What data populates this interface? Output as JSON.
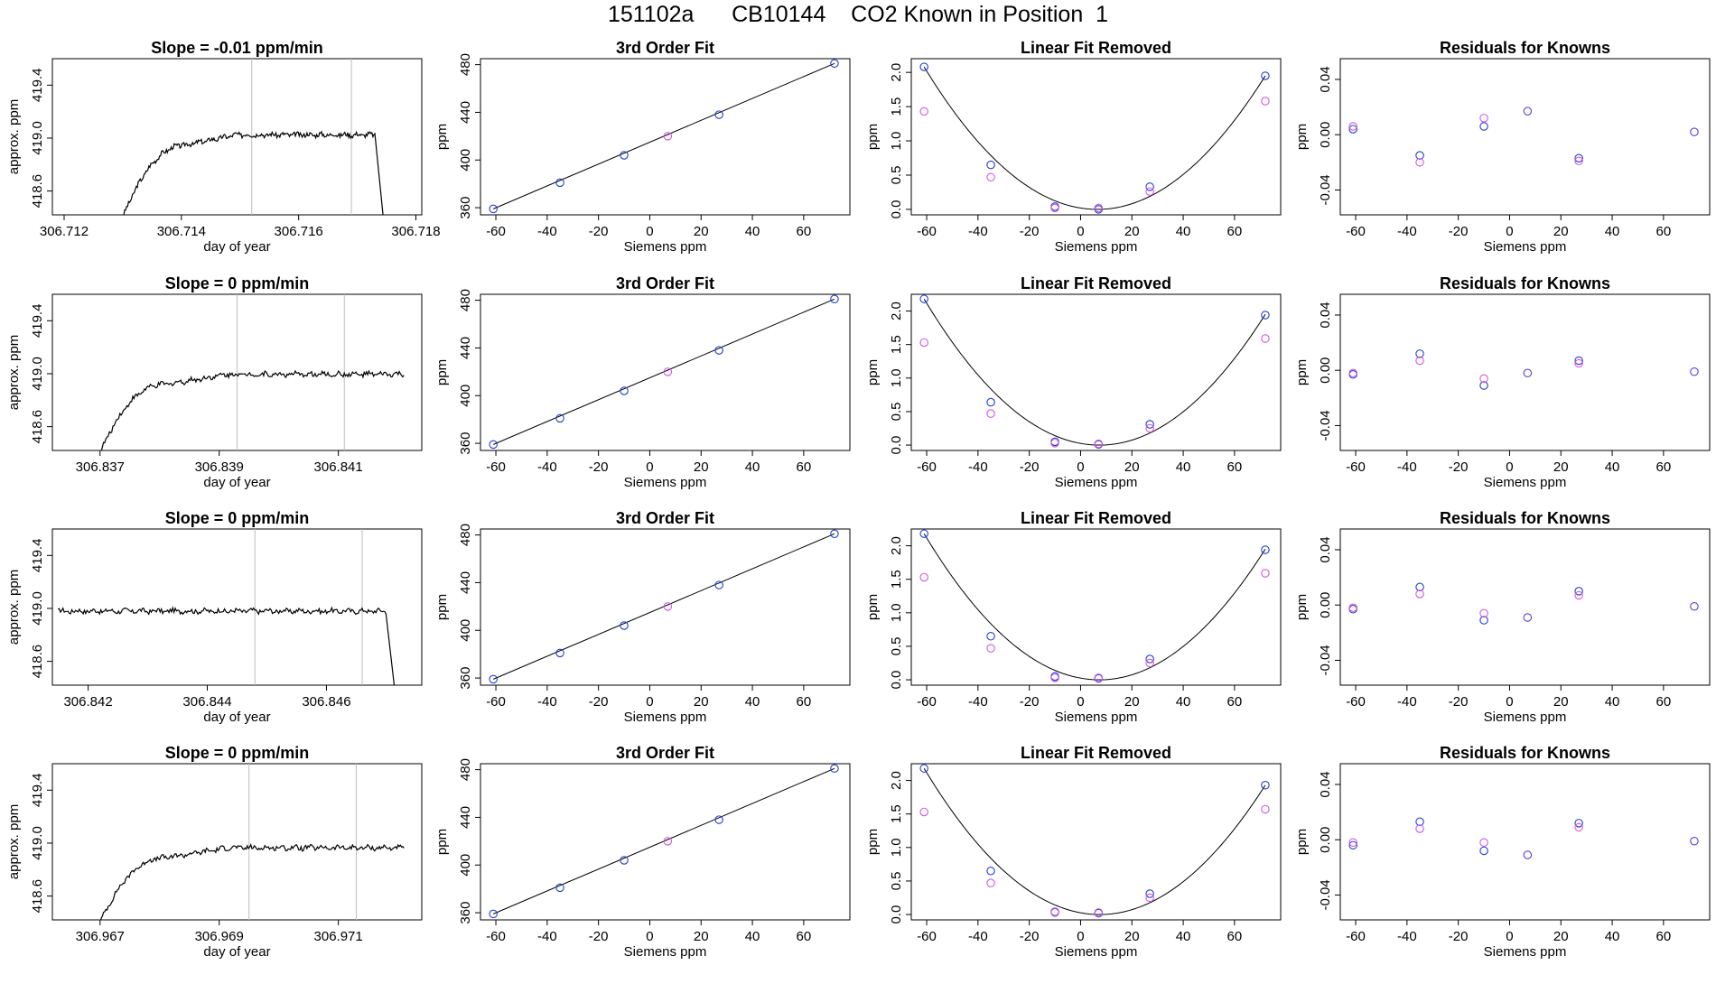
{
  "figure": {
    "title": "151102a      CB10144    CO2 Known in Position  1"
  },
  "colors": {
    "trace": "#000000",
    "vline": "#bdbdbd",
    "blue": "#1f3fd8",
    "purple": "#5b3fd8",
    "magenta": "#d455e6",
    "frame": "#000000"
  },
  "chart_data": [
    {
      "type": "line",
      "panel": "drift",
      "row": 0,
      "title": "Slope =  -0.01  ppm/min",
      "xlabel": "day of year",
      "ylabel": "approx. ppm",
      "xlim": [
        306.7118,
        306.7181
      ],
      "ylim": [
        418.42,
        419.6
      ],
      "xticks": [
        "306.712",
        "306.714",
        "306.716",
        "306.718"
      ],
      "yticks": [
        "418.6",
        "419.0",
        "419.4"
      ],
      "vlines": [
        306.7152,
        306.7169
      ],
      "trace": {
        "x_start": 306.713,
        "rise_end": 306.7141,
        "end": 306.7173,
        "level": 419.03,
        "base": 419.02,
        "lead": 0,
        "drop_end": 306.71745
      }
    },
    {
      "type": "line",
      "panel": "drift",
      "row": 1,
      "title": "Slope =  0  ppm/min",
      "xlabel": "day of year",
      "ylabel": "approx. ppm",
      "xlim": [
        306.8362,
        306.8424
      ],
      "ylim": [
        418.42,
        419.6
      ],
      "xticks": [
        "306.837",
        "306.839",
        "306.841"
      ],
      "yticks": [
        "418.6",
        "419.0",
        "419.4"
      ],
      "vlines": [
        306.8393,
        306.8411
      ],
      "trace": {
        "x_start": 306.837,
        "rise_end": 306.8381,
        "end": 306.8421,
        "level": 419.0,
        "base": 418.99,
        "lead": 0,
        "drop_end": null
      }
    },
    {
      "type": "line",
      "panel": "drift",
      "row": 2,
      "title": "Slope =  0  ppm/min",
      "xlabel": "day of year",
      "ylabel": "approx. ppm",
      "xlim": [
        306.8414,
        306.8476
      ],
      "ylim": [
        418.42,
        419.6
      ],
      "xticks": [
        "306.842",
        "306.844",
        "306.846"
      ],
      "yticks": [
        "418.6",
        "419.0",
        "419.4"
      ],
      "vlines": [
        306.8448,
        306.8466
      ],
      "trace": {
        "x_start": 306.8418,
        "rise_end": 306.8418,
        "end": 306.847,
        "level": 418.98,
        "base": 418.98,
        "lead": 1,
        "drop_end": 306.84715
      }
    },
    {
      "type": "line",
      "panel": "drift",
      "row": 3,
      "title": "Slope =  0  ppm/min",
      "xlabel": "day of year",
      "ylabel": "approx. ppm",
      "xlim": [
        306.9662,
        306.9724
      ],
      "ylim": [
        418.42,
        419.6
      ],
      "xticks": [
        "306.967",
        "306.969",
        "306.971"
      ],
      "yticks": [
        "418.6",
        "419.0",
        "419.4"
      ],
      "vlines": [
        306.9695,
        306.9713
      ],
      "trace": {
        "x_start": 306.967,
        "rise_end": 306.9681,
        "end": 306.9721,
        "level": 418.97,
        "base": 418.96,
        "lead": 0,
        "drop_end": null
      }
    },
    {
      "type": "scatter",
      "panel": "fit",
      "row": 0,
      "title": "3rd Order Fit",
      "xlabel": "Siemens ppm",
      "ylabel": "ppm",
      "xlim": [
        -66,
        78
      ],
      "ylim": [
        354,
        485
      ],
      "xticks": [
        -60,
        -40,
        -20,
        0,
        20,
        40,
        60
      ],
      "yticks": [
        360,
        400,
        440,
        480
      ],
      "line": [
        [
          -61,
          359
        ],
        [
          72,
          481
        ]
      ],
      "points": [
        {
          "x": -61,
          "y": 359,
          "c": "blue"
        },
        {
          "x": -35,
          "y": 381,
          "c": "blue"
        },
        {
          "x": -10,
          "y": 404,
          "c": "blue"
        },
        {
          "x": 7,
          "y": 420,
          "c": "magenta"
        },
        {
          "x": 27,
          "y": 438,
          "c": "blue"
        },
        {
          "x": 72,
          "y": 481,
          "c": "blue"
        }
      ]
    },
    {
      "type": "scatter",
      "panel": "fit",
      "row": 1,
      "title": "3rd Order Fit",
      "xlabel": "Siemens ppm",
      "ylabel": "ppm",
      "xlim": [
        -66,
        78
      ],
      "ylim": [
        354,
        485
      ],
      "xticks": [
        -60,
        -40,
        -20,
        0,
        20,
        40,
        60
      ],
      "yticks": [
        360,
        400,
        440,
        480
      ],
      "line": [
        [
          -61,
          359
        ],
        [
          72,
          481
        ]
      ],
      "points": [
        {
          "x": -61,
          "y": 359,
          "c": "blue"
        },
        {
          "x": -35,
          "y": 381,
          "c": "blue"
        },
        {
          "x": -10,
          "y": 404,
          "c": "blue"
        },
        {
          "x": 7,
          "y": 420,
          "c": "magenta"
        },
        {
          "x": 27,
          "y": 438,
          "c": "blue"
        },
        {
          "x": 72,
          "y": 481,
          "c": "blue"
        }
      ]
    },
    {
      "type": "scatter",
      "panel": "fit",
      "row": 2,
      "title": "3rd Order Fit",
      "xlabel": "Siemens ppm",
      "ylabel": "ppm",
      "xlim": [
        -66,
        78
      ],
      "ylim": [
        354,
        485
      ],
      "xticks": [
        -60,
        -40,
        -20,
        0,
        20,
        40,
        60
      ],
      "yticks": [
        360,
        400,
        440,
        480
      ],
      "line": [
        [
          -61,
          359
        ],
        [
          72,
          481
        ]
      ],
      "points": [
        {
          "x": -61,
          "y": 359,
          "c": "blue"
        },
        {
          "x": -35,
          "y": 381,
          "c": "blue"
        },
        {
          "x": -10,
          "y": 404,
          "c": "blue"
        },
        {
          "x": 7,
          "y": 420,
          "c": "magenta"
        },
        {
          "x": 27,
          "y": 438,
          "c": "blue"
        },
        {
          "x": 72,
          "y": 481,
          "c": "blue"
        }
      ]
    },
    {
      "type": "scatter",
      "panel": "fit",
      "row": 3,
      "title": "3rd Order Fit",
      "xlabel": "Siemens ppm",
      "ylabel": "ppm",
      "xlim": [
        -66,
        78
      ],
      "ylim": [
        354,
        485
      ],
      "xticks": [
        -60,
        -40,
        -20,
        0,
        20,
        40,
        60
      ],
      "yticks": [
        360,
        400,
        440,
        480
      ],
      "line": [
        [
          -61,
          359
        ],
        [
          72,
          481
        ]
      ],
      "points": [
        {
          "x": -61,
          "y": 359,
          "c": "blue"
        },
        {
          "x": -35,
          "y": 381,
          "c": "blue"
        },
        {
          "x": -10,
          "y": 404,
          "c": "blue"
        },
        {
          "x": 7,
          "y": 420,
          "c": "magenta"
        },
        {
          "x": 27,
          "y": 438,
          "c": "blue"
        },
        {
          "x": 72,
          "y": 481,
          "c": "blue"
        }
      ]
    },
    {
      "type": "scatter",
      "panel": "linear",
      "row": 0,
      "title": "Linear Fit Removed",
      "xlabel": "Siemens ppm",
      "ylabel": "ppm",
      "xlim": [
        -66,
        78
      ],
      "ylim": [
        -0.08,
        2.2
      ],
      "xticks": [
        -60,
        -40,
        -20,
        0,
        20,
        40,
        60
      ],
      "yticks": [
        "0.0",
        "0.5",
        "1.0",
        "1.5",
        "2.0"
      ],
      "curve": [
        -61,
        2.08,
        72,
        1.95
      ],
      "points": [
        {
          "x": -61,
          "y": 2.08,
          "c": "blue"
        },
        {
          "x": -61,
          "y": 1.43,
          "c": "magenta"
        },
        {
          "x": -35,
          "y": 0.65,
          "c": "blue"
        },
        {
          "x": -35,
          "y": 0.47,
          "c": "magenta"
        },
        {
          "x": -10,
          "y": 0.04,
          "c": "blue"
        },
        {
          "x": -10,
          "y": 0.02,
          "c": "magenta"
        },
        {
          "x": 7,
          "y": 0.0,
          "c": "blue"
        },
        {
          "x": 7,
          "y": 0.02,
          "c": "magenta"
        },
        {
          "x": 27,
          "y": 0.33,
          "c": "blue"
        },
        {
          "x": 27,
          "y": 0.26,
          "c": "magenta"
        },
        {
          "x": 72,
          "y": 1.95,
          "c": "blue"
        },
        {
          "x": 72,
          "y": 1.58,
          "c": "magenta"
        }
      ]
    },
    {
      "type": "scatter",
      "panel": "linear",
      "row": 1,
      "title": "Linear Fit Removed",
      "xlabel": "Siemens ppm",
      "ylabel": "ppm",
      "xlim": [
        -66,
        78
      ],
      "ylim": [
        -0.08,
        2.25
      ],
      "xticks": [
        -60,
        -40,
        -20,
        0,
        20,
        40,
        60
      ],
      "yticks": [
        "0.0",
        "0.5",
        "1.0",
        "1.5",
        "2.0"
      ],
      "curve": [
        -61,
        2.18,
        72,
        1.95
      ],
      "points": [
        {
          "x": -61,
          "y": 2.18,
          "c": "blue"
        },
        {
          "x": -61,
          "y": 1.53,
          "c": "magenta"
        },
        {
          "x": -35,
          "y": 0.64,
          "c": "blue"
        },
        {
          "x": -35,
          "y": 0.47,
          "c": "magenta"
        },
        {
          "x": -10,
          "y": 0.05,
          "c": "blue"
        },
        {
          "x": -10,
          "y": 0.03,
          "c": "magenta"
        },
        {
          "x": 7,
          "y": 0.01,
          "c": "blue"
        },
        {
          "x": 7,
          "y": 0.02,
          "c": "magenta"
        },
        {
          "x": 27,
          "y": 0.31,
          "c": "blue"
        },
        {
          "x": 27,
          "y": 0.25,
          "c": "magenta"
        },
        {
          "x": 72,
          "y": 1.94,
          "c": "blue"
        },
        {
          "x": 72,
          "y": 1.59,
          "c": "magenta"
        }
      ]
    },
    {
      "type": "scatter",
      "panel": "linear",
      "row": 2,
      "title": "Linear Fit Removed",
      "xlabel": "Siemens ppm",
      "ylabel": "ppm",
      "xlim": [
        -66,
        78
      ],
      "ylim": [
        -0.08,
        2.25
      ],
      "xticks": [
        -60,
        -40,
        -20,
        0,
        20,
        40,
        60
      ],
      "yticks": [
        "0.0",
        "0.5",
        "1.0",
        "1.5",
        "2.0"
      ],
      "curve": [
        -61,
        2.18,
        72,
        1.95
      ],
      "points": [
        {
          "x": -61,
          "y": 2.18,
          "c": "blue"
        },
        {
          "x": -61,
          "y": 1.53,
          "c": "magenta"
        },
        {
          "x": -35,
          "y": 0.65,
          "c": "blue"
        },
        {
          "x": -35,
          "y": 0.47,
          "c": "magenta"
        },
        {
          "x": -10,
          "y": 0.05,
          "c": "blue"
        },
        {
          "x": -10,
          "y": 0.03,
          "c": "magenta"
        },
        {
          "x": 7,
          "y": 0.02,
          "c": "blue"
        },
        {
          "x": 7,
          "y": 0.03,
          "c": "magenta"
        },
        {
          "x": 27,
          "y": 0.31,
          "c": "blue"
        },
        {
          "x": 27,
          "y": 0.25,
          "c": "magenta"
        },
        {
          "x": 72,
          "y": 1.94,
          "c": "blue"
        },
        {
          "x": 72,
          "y": 1.59,
          "c": "magenta"
        }
      ]
    },
    {
      "type": "scatter",
      "panel": "linear",
      "row": 3,
      "title": "Linear Fit Removed",
      "xlabel": "Siemens ppm",
      "ylabel": "ppm",
      "xlim": [
        -66,
        78
      ],
      "ylim": [
        -0.08,
        2.25
      ],
      "xticks": [
        -60,
        -40,
        -20,
        0,
        20,
        40,
        60
      ],
      "yticks": [
        "0.0",
        "0.5",
        "1.0",
        "1.5",
        "2.0"
      ],
      "curve": [
        -61,
        2.18,
        72,
        1.93
      ],
      "points": [
        {
          "x": -61,
          "y": 2.18,
          "c": "blue"
        },
        {
          "x": -61,
          "y": 1.53,
          "c": "magenta"
        },
        {
          "x": -35,
          "y": 0.65,
          "c": "blue"
        },
        {
          "x": -35,
          "y": 0.47,
          "c": "magenta"
        },
        {
          "x": -10,
          "y": 0.04,
          "c": "blue"
        },
        {
          "x": -10,
          "y": 0.03,
          "c": "magenta"
        },
        {
          "x": 7,
          "y": 0.02,
          "c": "blue"
        },
        {
          "x": 7,
          "y": 0.03,
          "c": "magenta"
        },
        {
          "x": 27,
          "y": 0.31,
          "c": "blue"
        },
        {
          "x": 27,
          "y": 0.25,
          "c": "magenta"
        },
        {
          "x": 72,
          "y": 1.93,
          "c": "blue"
        },
        {
          "x": 72,
          "y": 1.57,
          "c": "magenta"
        }
      ]
    },
    {
      "type": "scatter",
      "panel": "resid",
      "row": 0,
      "title": "Residuals for Knowns",
      "xlabel": "Siemens ppm",
      "ylabel": "ppm",
      "xlim": [
        -66,
        78
      ],
      "ylim": [
        -0.058,
        0.055
      ],
      "xticks": [
        -60,
        -40,
        -20,
        0,
        20,
        40,
        60
      ],
      "yticks": [
        "-0.04",
        "0.00",
        "0.04"
      ],
      "points": [
        {
          "x": -61,
          "y": 0.004,
          "c": "blue"
        },
        {
          "x": -61,
          "y": 0.006,
          "c": "magenta"
        },
        {
          "x": -35,
          "y": -0.015,
          "c": "blue"
        },
        {
          "x": -35,
          "y": -0.02,
          "c": "magenta"
        },
        {
          "x": -10,
          "y": 0.006,
          "c": "blue"
        },
        {
          "x": -10,
          "y": 0.012,
          "c": "magenta"
        },
        {
          "x": 7,
          "y": 0.017,
          "c": "purple"
        },
        {
          "x": 27,
          "y": -0.017,
          "c": "blue"
        },
        {
          "x": 27,
          "y": -0.019,
          "c": "magenta"
        },
        {
          "x": 72,
          "y": 0.002,
          "c": "purple"
        }
      ]
    },
    {
      "type": "scatter",
      "panel": "resid",
      "row": 1,
      "title": "Residuals for Knowns",
      "xlabel": "Siemens ppm",
      "ylabel": "ppm",
      "xlim": [
        -66,
        78
      ],
      "ylim": [
        -0.058,
        0.055
      ],
      "xticks": [
        -60,
        -40,
        -20,
        0,
        20,
        40,
        60
      ],
      "yticks": [
        "-0.04",
        "0.00",
        "0.04"
      ],
      "points": [
        {
          "x": -61,
          "y": -0.003,
          "c": "blue"
        },
        {
          "x": -61,
          "y": -0.002,
          "c": "magenta"
        },
        {
          "x": -35,
          "y": 0.012,
          "c": "blue"
        },
        {
          "x": -35,
          "y": 0.007,
          "c": "magenta"
        },
        {
          "x": -10,
          "y": -0.011,
          "c": "blue"
        },
        {
          "x": -10,
          "y": -0.006,
          "c": "magenta"
        },
        {
          "x": 7,
          "y": -0.002,
          "c": "purple"
        },
        {
          "x": 27,
          "y": 0.007,
          "c": "blue"
        },
        {
          "x": 27,
          "y": 0.005,
          "c": "magenta"
        },
        {
          "x": 72,
          "y": -0.001,
          "c": "purple"
        }
      ]
    },
    {
      "type": "scatter",
      "panel": "resid",
      "row": 2,
      "title": "Residuals for Knowns",
      "xlabel": "Siemens ppm",
      "ylabel": "ppm",
      "xlim": [
        -66,
        78
      ],
      "ylim": [
        -0.058,
        0.055
      ],
      "xticks": [
        -60,
        -40,
        -20,
        0,
        20,
        40,
        60
      ],
      "yticks": [
        "-0.04",
        "0.00",
        "0.04"
      ],
      "points": [
        {
          "x": -61,
          "y": -0.003,
          "c": "blue"
        },
        {
          "x": -61,
          "y": -0.002,
          "c": "magenta"
        },
        {
          "x": -35,
          "y": 0.013,
          "c": "blue"
        },
        {
          "x": -35,
          "y": 0.008,
          "c": "magenta"
        },
        {
          "x": -10,
          "y": -0.011,
          "c": "blue"
        },
        {
          "x": -10,
          "y": -0.006,
          "c": "magenta"
        },
        {
          "x": 7,
          "y": -0.009,
          "c": "purple"
        },
        {
          "x": 27,
          "y": 0.01,
          "c": "blue"
        },
        {
          "x": 27,
          "y": 0.007,
          "c": "magenta"
        },
        {
          "x": 72,
          "y": -0.001,
          "c": "purple"
        }
      ]
    },
    {
      "type": "scatter",
      "panel": "resid",
      "row": 3,
      "title": "Residuals for Knowns",
      "xlabel": "Siemens ppm",
      "ylabel": "ppm",
      "xlim": [
        -66,
        78
      ],
      "ylim": [
        -0.058,
        0.055
      ],
      "xticks": [
        -60,
        -40,
        -20,
        0,
        20,
        40,
        60
      ],
      "yticks": [
        "-0.04",
        "0.00",
        "0.04"
      ],
      "points": [
        {
          "x": -61,
          "y": -0.004,
          "c": "blue"
        },
        {
          "x": -61,
          "y": -0.002,
          "c": "magenta"
        },
        {
          "x": -35,
          "y": 0.013,
          "c": "blue"
        },
        {
          "x": -35,
          "y": 0.008,
          "c": "magenta"
        },
        {
          "x": -10,
          "y": -0.008,
          "c": "blue"
        },
        {
          "x": -10,
          "y": -0.002,
          "c": "magenta"
        },
        {
          "x": 7,
          "y": -0.011,
          "c": "purple"
        },
        {
          "x": 27,
          "y": 0.012,
          "c": "blue"
        },
        {
          "x": 27,
          "y": 0.009,
          "c": "magenta"
        },
        {
          "x": 72,
          "y": -0.001,
          "c": "purple"
        }
      ]
    }
  ]
}
